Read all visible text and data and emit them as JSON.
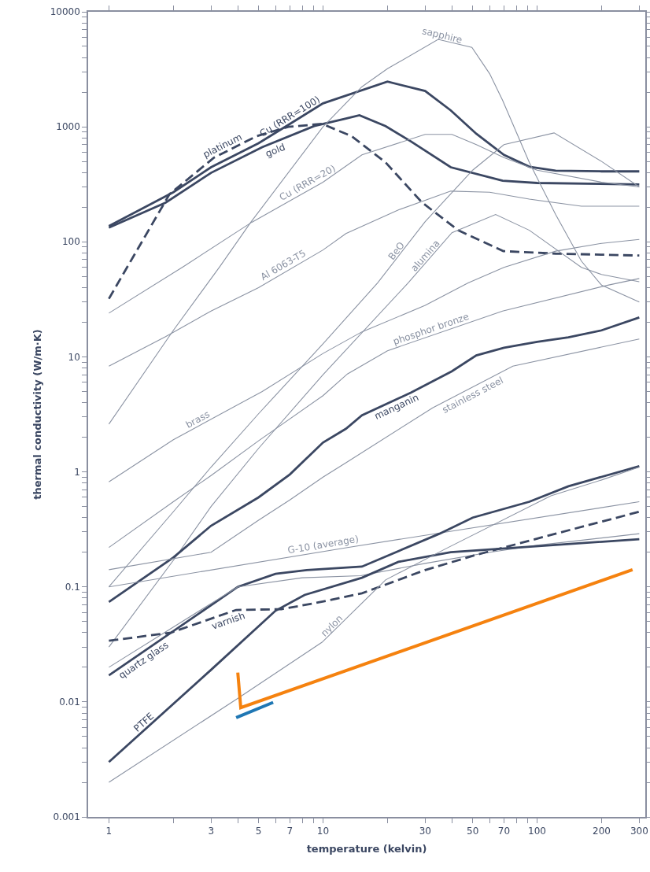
{
  "chart_data": {
    "type": "line",
    "xlabel": "temperature (kelvin)",
    "ylabel": "thermal conductivity (W/m·K)",
    "log": "xy",
    "grid": false,
    "legend": false,
    "marker": "none",
    "line_style": "solid",
    "xlim": [
      0.8,
      320
    ],
    "ylim": [
      0.001,
      10000
    ],
    "xticks": [
      1,
      {
        "value": 2,
        "label": null
      },
      3,
      {
        "value": 4,
        "label": null
      },
      5,
      {
        "value": 6,
        "label": null
      },
      7,
      {
        "value": 8,
        "label": null
      },
      {
        "value": 9,
        "label": null
      },
      10,
      {
        "value": 20,
        "label": null
      },
      30,
      {
        "value": 40,
        "label": null
      },
      50,
      {
        "value": 60,
        "label": null
      },
      70,
      {
        "value": 80,
        "label": null
      },
      {
        "value": 90,
        "label": null
      },
      100,
      200,
      300
    ],
    "yticks": [
      0.001,
      {
        "value": 0.002,
        "label": null
      },
      {
        "value": 0.003,
        "label": null
      },
      {
        "value": 0.004,
        "label": null
      },
      {
        "value": 0.005,
        "label": null
      },
      {
        "value": 0.006,
        "label": null
      },
      {
        "value": 0.007,
        "label": null
      },
      {
        "value": 0.008,
        "label": null
      },
      {
        "value": 0.009,
        "label": null
      },
      0.01,
      {
        "value": 0.02,
        "label": null
      },
      {
        "value": 0.03,
        "label": null
      },
      {
        "value": 0.04,
        "label": null
      },
      {
        "value": 0.05,
        "label": null
      },
      {
        "value": 0.06,
        "label": null
      },
      {
        "value": 0.07,
        "label": null
      },
      {
        "value": 0.08,
        "label": null
      },
      {
        "value": 0.09,
        "label": null
      },
      0.1,
      {
        "value": 0.2,
        "label": null
      },
      {
        "value": 0.3,
        "label": null
      },
      {
        "value": 0.4,
        "label": null
      },
      {
        "value": 0.5,
        "label": null
      },
      {
        "value": 0.6,
        "label": null
      },
      {
        "value": 0.7,
        "label": null
      },
      {
        "value": 0.8,
        "label": null
      },
      {
        "value": 0.9,
        "label": null
      },
      1,
      {
        "value": 2,
        "label": null
      },
      {
        "value": 3,
        "label": null
      },
      {
        "value": 4,
        "label": null
      },
      {
        "value": 5,
        "label": null
      },
      {
        "value": 6,
        "label": null
      },
      {
        "value": 7,
        "label": null
      },
      {
        "value": 8,
        "label": null
      },
      {
        "value": 9,
        "label": null
      },
      10,
      {
        "value": 20,
        "label": null
      },
      {
        "value": 30,
        "label": null
      },
      {
        "value": 40,
        "label": null
      },
      {
        "value": 50,
        "label": null
      },
      {
        "value": 60,
        "label": null
      },
      {
        "value": 70,
        "label": null
      },
      {
        "value": 80,
        "label": null
      },
      {
        "value": 90,
        "label": null
      },
      100,
      {
        "value": 200,
        "label": null
      },
      {
        "value": 300,
        "label": null
      },
      {
        "value": 400,
        "label": null
      },
      {
        "value": 500,
        "label": null
      },
      {
        "value": 600,
        "label": null
      },
      {
        "value": 700,
        "label": null
      },
      {
        "value": 800,
        "label": null
      },
      {
        "value": 900,
        "label": null
      },
      1000,
      {
        "value": 2000,
        "label": null
      },
      {
        "value": 3000,
        "label": null
      },
      {
        "value": 4000,
        "label": null
      },
      {
        "value": 5000,
        "label": null
      },
      {
        "value": 6000,
        "label": null
      },
      {
        "value": 7000,
        "label": null
      },
      {
        "value": 8000,
        "label": null
      },
      {
        "value": 9000,
        "label": null
      },
      10000
    ],
    "series": [
      {
        "name": "Cu (RRR=100)",
        "color": "#3b4762",
        "x": [
          1,
          2,
          3,
          5,
          7,
          10,
          20,
          30,
          39.5,
          52,
          70,
          92,
          122,
          200,
          300
        ],
        "values": [
          137,
          270,
          445,
          720,
          1060,
          1600,
          2470,
          2050,
          1390,
          870,
          570,
          450,
          415,
          410,
          410
        ]
      },
      {
        "name": "gold",
        "color": "#3b4762",
        "x": [
          1,
          1.84,
          3,
          5.2,
          9.1,
          12.8,
          14.8,
          19.6,
          25.8,
          39.5,
          69,
          100,
          300
        ],
        "values": [
          133,
          219,
          398,
          665,
          1015,
          1180,
          1260,
          1015,
          745,
          445,
          340,
          325,
          315
        ]
      },
      {
        "name": "platinum",
        "color": "#3b4762",
        "line_style": "dashed",
        "x": [
          1,
          1.92,
          3.1,
          4.9,
          6.9,
          9.9,
          13.6,
          19.6,
          29,
          42.8,
          69.5,
          122,
          300
        ],
        "values": [
          32,
          260,
          540,
          830,
          1000,
          1060,
          830,
          490,
          220,
          126,
          83,
          79,
          76
        ]
      },
      {
        "name": "Cu (RRR=20)",
        "color": "#8b93a3",
        "x": [
          1,
          2.23,
          4.65,
          10,
          15.2,
          30,
          40,
          52,
          70,
          100,
          200,
          300
        ],
        "values": [
          24,
          61,
          148,
          330,
          570,
          860,
          860,
          700,
          540,
          420,
          330,
          300
        ]
      },
      {
        "name": "Al 6063-T5",
        "color": "#8b93a3",
        "x": [
          1,
          1.84,
          3,
          5,
          10,
          12.8,
          22.6,
          39.5,
          60,
          92,
          161,
          300
        ],
        "values": [
          8.3,
          15,
          25,
          40,
          85,
          118,
          190,
          276,
          270,
          235,
          204,
          204
        ]
      },
      {
        "name": "sapphire",
        "color": "#8b93a3",
        "x": [
          1,
          2,
          3.3,
          4.6,
          10,
          15.2,
          20,
          34.5,
          49.6,
          60,
          69,
          92,
          122,
          161,
          200,
          300
        ],
        "values": [
          2.6,
          17,
          61,
          148,
          1000,
          2230,
          3200,
          5760,
          4900,
          2900,
          1700,
          490,
          173,
          68,
          42,
          30
        ]
      },
      {
        "name": "BeO",
        "color": "#8b93a3",
        "x": [
          1,
          2,
          3,
          5,
          10,
          18,
          30,
          50,
          70,
          120,
          200,
          300
        ],
        "values": [
          0.1,
          0.45,
          1.1,
          3.2,
          13,
          44,
          150,
          420,
          700,
          885,
          500,
          300
        ]
      },
      {
        "name": "alumina",
        "color": "#8b93a3",
        "x": [
          1,
          2,
          3,
          5,
          10,
          25,
          40,
          64,
          92,
          161,
          200,
          300
        ],
        "values": [
          0.03,
          0.17,
          0.5,
          1.6,
          7,
          44,
          120,
          173,
          126,
          60,
          52,
          45
        ]
      },
      {
        "name": "brass",
        "color": "#8b93a3",
        "x": [
          1,
          2,
          5.2,
          10,
          15.2,
          30,
          47.6,
          70,
          122,
          200,
          300
        ],
        "values": [
          0.82,
          1.9,
          5,
          10.7,
          16.5,
          28,
          44,
          60,
          83,
          97,
          105
        ]
      },
      {
        "name": "phosphor bronze",
        "color": "#8b93a3",
        "x": [
          1,
          2,
          3,
          5,
          10,
          13,
          20,
          69,
          214,
          300
        ],
        "values": [
          0.22,
          0.55,
          0.93,
          1.86,
          4.6,
          7.1,
          11.3,
          25,
          42,
          48
        ]
      },
      {
        "name": "manganin",
        "color": "#3b4762",
        "x": [
          1,
          2,
          3,
          5,
          7,
          10,
          12.8,
          15.2,
          25.8,
          40,
          52,
          70,
          100,
          140,
          200,
          300
        ],
        "values": [
          0.074,
          0.18,
          0.34,
          0.6,
          0.95,
          1.8,
          2.37,
          3.1,
          4.9,
          7.5,
          10.3,
          12,
          13.5,
          14.8,
          17,
          22
        ]
      },
      {
        "name": "stainless steel",
        "color": "#8b93a3",
        "x": [
          1,
          3,
          5,
          7,
          10,
          12.8,
          32.5,
          77,
          300
        ],
        "values": [
          0.141,
          0.2,
          0.38,
          0.57,
          0.9,
          1.2,
          3.6,
          8.3,
          14.3
        ]
      },
      {
        "name": "G-10 (average)",
        "color": "#8b93a3",
        "x": [
          1,
          13,
          300
        ],
        "values": [
          0.1,
          0.22,
          0.55
        ]
      },
      {
        "name": "quartz glass",
        "color": "#3b4762",
        "x": [
          1,
          4,
          6,
          8.4,
          15.2,
          35,
          50,
          92,
          140,
          300
        ],
        "values": [
          0.017,
          0.1,
          0.13,
          0.14,
          0.15,
          0.29,
          0.4,
          0.55,
          0.75,
          1.12
        ]
      },
      {
        "color": "#8b93a3",
        "x": [
          1,
          4,
          8,
          15,
          30,
          60,
          100,
          300
        ],
        "values": [
          0.02,
          0.1,
          0.12,
          0.125,
          0.16,
          0.2,
          0.23,
          0.29
        ]
      },
      {
        "name": "varnish",
        "color": "#3b4762",
        "line_style": "dashed",
        "x": [
          1,
          1.95,
          3.93,
          6.4,
          9.1,
          15.2,
          30,
          52,
          122,
          300
        ],
        "values": [
          0.034,
          0.04,
          0.063,
          0.064,
          0.072,
          0.088,
          0.14,
          0.19,
          0.29,
          0.45
        ]
      },
      {
        "name": "PTFE",
        "color": "#3b4762",
        "x": [
          1,
          3,
          6,
          8.2,
          15.2,
          22.5,
          39.5,
          300
        ],
        "values": [
          0.003,
          0.019,
          0.062,
          0.085,
          0.12,
          0.165,
          0.2,
          0.26
        ]
      },
      {
        "name": "nylon",
        "color": "#8b93a3",
        "x": [
          1,
          3.93,
          9.9,
          19.6,
          37.5,
          116,
          200,
          300
        ],
        "values": [
          0.002,
          0.0105,
          0.033,
          0.115,
          0.215,
          0.62,
          0.85,
          1.1
        ]
      },
      {
        "color": "#f5820f",
        "x": [
          4,
          4.13,
          279
        ],
        "values": [
          0.018,
          0.0089,
          0.141
        ]
      },
      {
        "color": "#1f77b4",
        "x": [
          3.93,
          5.85
        ],
        "values": [
          0.0073,
          0.0099
        ]
      }
    ]
  }
}
